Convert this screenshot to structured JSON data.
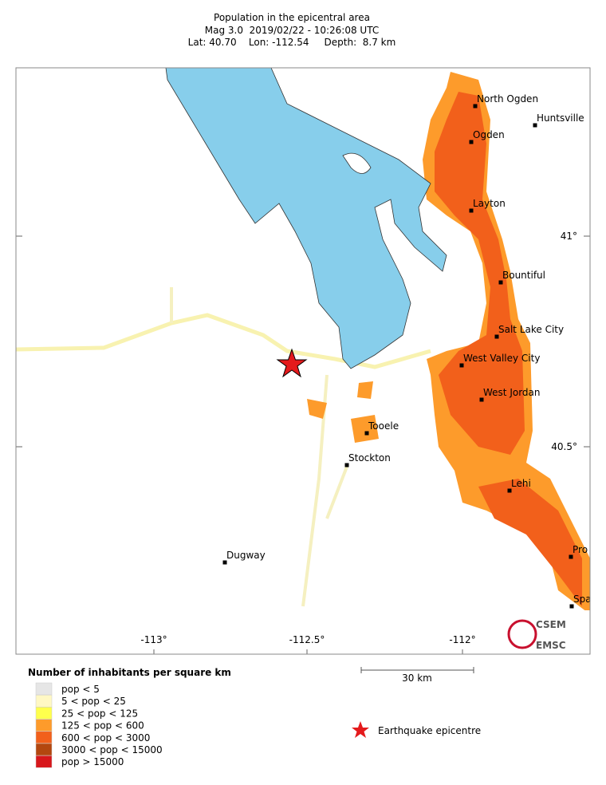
{
  "header": {
    "title": "Population in the epicentral area",
    "line2": "Mag 3.0  2019/02/22 - 10:26:08 UTC",
    "line3": "Lat: 40.70    Lon: -112.54     Depth:  8.7 km"
  },
  "map": {
    "lon_labels": [
      "-113°",
      "-112.5°",
      "-112°"
    ],
    "lat_labels": [
      "41°",
      "40.5°"
    ],
    "cities": [
      {
        "name": "North Ogden"
      },
      {
        "name": "Huntsville"
      },
      {
        "name": "Ogden"
      },
      {
        "name": "Layton"
      },
      {
        "name": "Bountiful"
      },
      {
        "name": "Salt Lake City"
      },
      {
        "name": "West Valley City"
      },
      {
        "name": "West Jordan"
      },
      {
        "name": "Tooele"
      },
      {
        "name": "Stockton"
      },
      {
        "name": "Lehi"
      },
      {
        "name": "Dugway"
      },
      {
        "name": "Pro"
      },
      {
        "name": "Spa"
      }
    ],
    "logo": {
      "top": "CSEM",
      "bottom": "EMSC"
    }
  },
  "legend": {
    "title": "Number of inhabitants per square km",
    "entries": [
      {
        "label": "pop < 5",
        "color": "#e6e6e6"
      },
      {
        "label": "5 < pop < 25",
        "color": "#fff8c4"
      },
      {
        "label": "25 < pop < 125",
        "color": "#ffff4d"
      },
      {
        "label": "125 < pop < 600",
        "color": "#fd9b2b"
      },
      {
        "label": "600 < pop < 3000",
        "color": "#f2601b"
      },
      {
        "label": "3000 < pop < 15000",
        "color": "#b3470f"
      },
      {
        "label": "pop > 15000",
        "color": "#d7171b"
      }
    ],
    "scale": "30 km",
    "epicentre": "Earthquake epicentre"
  }
}
